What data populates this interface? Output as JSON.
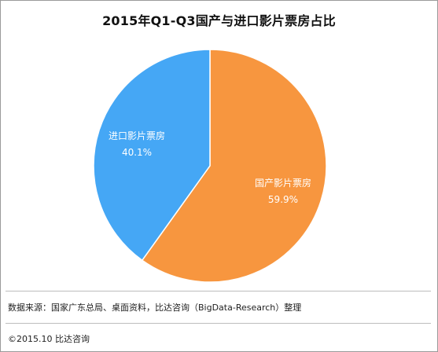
{
  "chart_data": {
    "type": "pie",
    "title": "2015年Q1-Q3国产与进口影片票房占比",
    "slices": [
      {
        "label": "国产影片票房",
        "value": 59.9,
        "value_label": "59.9%",
        "color": "#F7963F"
      },
      {
        "label": "进口影片票房",
        "value": 40.1,
        "value_label": "40.1%",
        "color": "#45A7F5"
      }
    ],
    "start_angle": "12 o'clock, clockwise",
    "legend": "none"
  },
  "footer": {
    "source": "数据来源：国家广东总局、桌面资料，比达咨询（BigData-Research）整理",
    "copyright": "©2015.10  比达咨询"
  },
  "colors": {
    "slice_stroke": "#ffffff",
    "border": "#9a9a9a",
    "divider": "#bdbdbd"
  }
}
